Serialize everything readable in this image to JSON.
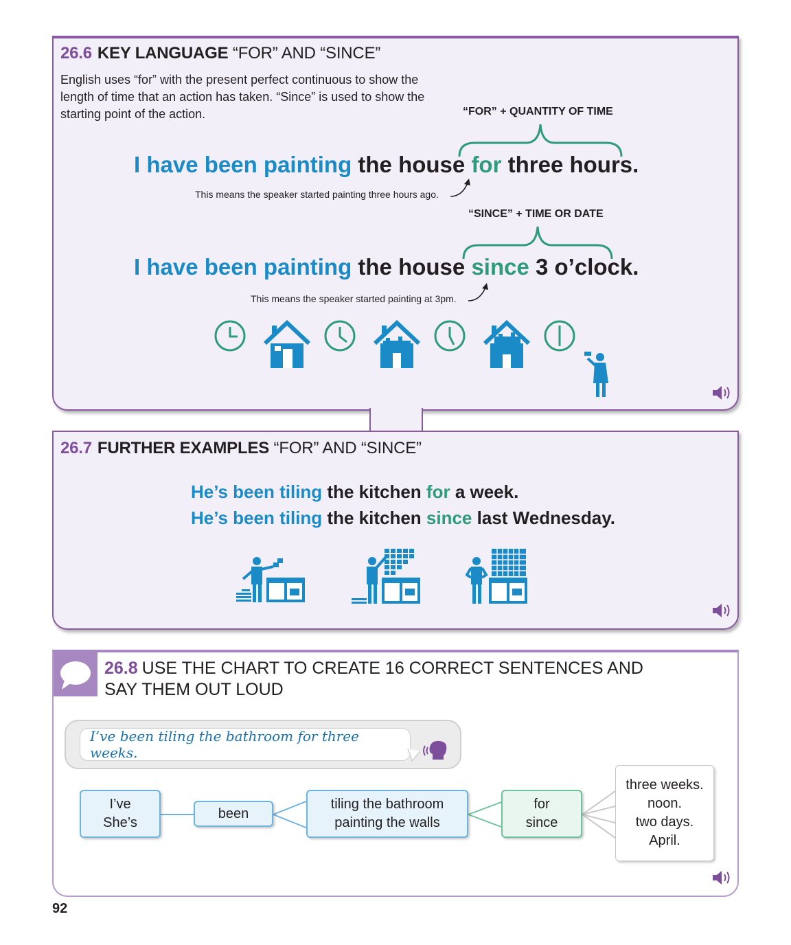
{
  "section_26_6": {
    "number": "26.6",
    "title": "KEY LANGUAGE",
    "subtitle": "“FOR” AND “SINCE”",
    "intro": "English uses “for” with the present perfect continuous to show the length of time that an action has taken. “Since” is used to show the starting point of the action.",
    "example1": {
      "bracket_label": "“FOR” + QUANTITY OF TIME",
      "verb": "I have been painting",
      "object": "the house",
      "keyword": "for",
      "time": "three hours.",
      "note": "This means the speaker started painting three hours ago."
    },
    "example2": {
      "bracket_label": "“SINCE” + TIME OR DATE",
      "verb": "I have been painting",
      "object": "the house",
      "keyword": "since",
      "time": "3 o’clock.",
      "note": "This means the speaker started painting at 3pm."
    },
    "illustration_icons": [
      "clock-icon",
      "house-icon",
      "clock-icon",
      "house-icon",
      "clock-icon",
      "house-icon",
      "clock-icon",
      "painter-icon"
    ],
    "audio_icon": "speaker-icon"
  },
  "section_26_7": {
    "number": "26.7",
    "title": "FURTHER EXAMPLES",
    "subtitle": "“FOR” AND “SINCE”",
    "sentence1": {
      "verb": "He’s been tiling",
      "object": "the kitchen",
      "keyword": "for",
      "time": "a week."
    },
    "sentence2": {
      "verb": "He’s been tiling",
      "object": "the kitchen",
      "keyword": "since",
      "time": "last Wednesday."
    },
    "illustration_icons": [
      "tiler-icon",
      "tiler-icon",
      "tiler-icon"
    ],
    "audio_icon": "speaker-icon"
  },
  "section_26_8": {
    "number": "26.8",
    "title": "USE THE CHART TO CREATE 16 CORRECT SENTENCES AND SAY THEM OUT LOUD",
    "example": "I’ve been tiling the bathroom for three weeks.",
    "chart": {
      "subjects": [
        "I’ve",
        "She’s"
      ],
      "aux": "been",
      "actions": [
        "tiling the bathroom",
        "painting the walls"
      ],
      "prepositions": [
        "for",
        "since"
      ],
      "times": [
        "three weeks.",
        "noon.",
        "two days.",
        "April."
      ]
    },
    "audio_icon": "speaker-icon"
  },
  "page_number": "92",
  "colors": {
    "purple": "#7d4e9a",
    "blue": "#1a8bc6",
    "green": "#2e9c7a",
    "panel_bg": "#f3eff8"
  }
}
